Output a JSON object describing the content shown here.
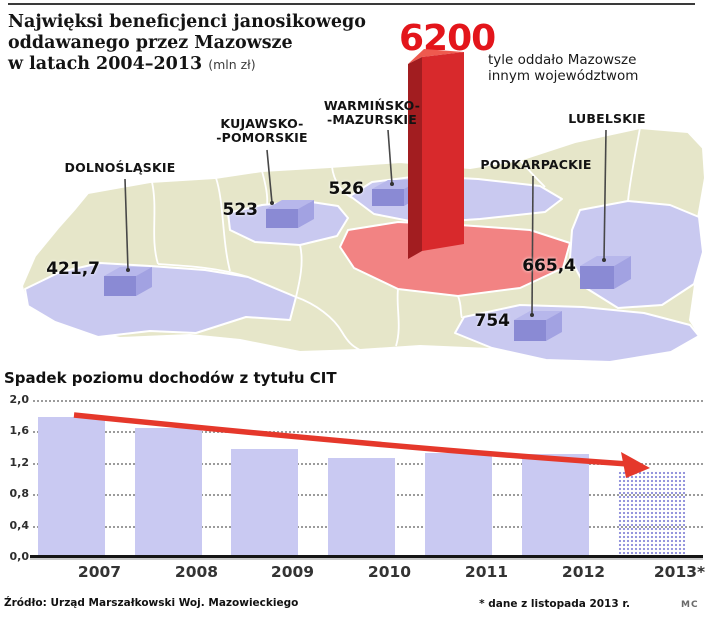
{
  "header": {
    "title_line1": "Najwięksi beneficjenci janosikowego",
    "title_line2": "oddawanego przez Mazowsze",
    "title_line3": "w latach 2004–2013",
    "title_unit": "(mln zł)"
  },
  "map": {
    "colors": {
      "land": "#e6e6c9",
      "beneficiary_region": "#c9c9f0",
      "mazowsze_region": "#f28383",
      "big_bar_red": "#d8292c",
      "big_value_red": "#e3151b"
    },
    "big_bar": {
      "value": "6200",
      "note_line1": "tyle oddało Mazowsze",
      "note_line2": "innym województwom"
    },
    "regions": [
      {
        "label_line1": "DOLNOŚLĄSKIE",
        "label_line2": "",
        "value": "421,7"
      },
      {
        "label_line1": "KUJAWSKO-",
        "label_line2": "-POMORSKIE",
        "value": "523"
      },
      {
        "label_line1": "WARMIŃSKO-",
        "label_line2": "-MAZURSKIE",
        "value": "526"
      },
      {
        "label_line1": "PODKARPACKIE",
        "label_line2": "",
        "value": "754"
      },
      {
        "label_line1": "LUBELSKIE",
        "label_line2": "",
        "value": "665,4"
      }
    ]
  },
  "chart_data": {
    "type": "bar",
    "title": "Spadek poziomu dochodów z tytułu CIT",
    "categories": [
      "2007",
      "2008",
      "2009",
      "2010",
      "2011",
      "2012",
      "2013*"
    ],
    "values": [
      1.78,
      1.64,
      1.38,
      1.26,
      1.33,
      1.31,
      1.1
    ],
    "ylim": [
      0,
      2.0
    ],
    "ytick_labels": [
      "2,0",
      "1,6",
      "1,2",
      "0,8",
      "0,4",
      "0,0"
    ],
    "xlabel": "",
    "ylabel": "",
    "grid": true,
    "legend": "none",
    "last_bar_forecast": true,
    "trend_arrow": "declining",
    "colors": {
      "bar": "#c9c9f2",
      "forecast_dot": "#8f8fdb",
      "arrow": "#e5382b"
    }
  },
  "footer": {
    "source": "Źródło: Urząd Marszałkowski Woj. Mazowieckiego",
    "note": "* dane z listopada 2013 r.",
    "credit": "MC"
  }
}
